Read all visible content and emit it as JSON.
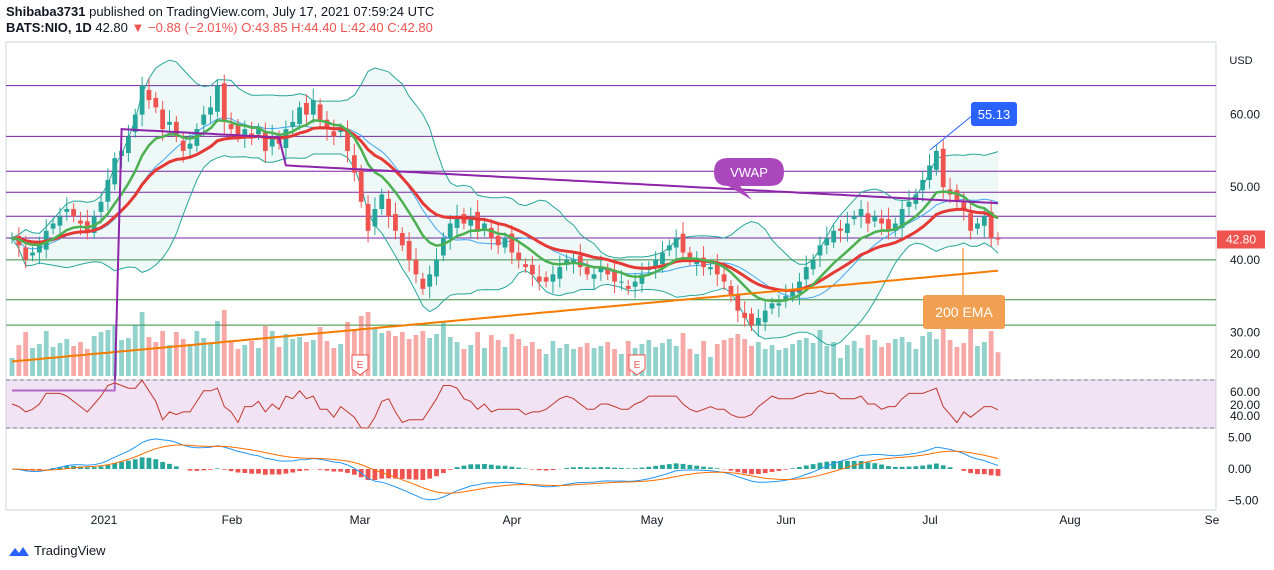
{
  "header": {
    "author": "Shibaba3731",
    "published": "published on TradingView.com, July 17, 2021 07:59:24 UTC",
    "symbol": "BATS:NIO, 1D",
    "last": "42.80",
    "change": "−0.88 (−2.01%)",
    "ohlc": "O:43.85 H:44.40 L:42.40 C:42.80"
  },
  "footer": {
    "brand": "TradingView"
  },
  "colors": {
    "up": "#26a69a",
    "down": "#ef5350",
    "vwap": "#8e24aa",
    "ema200": "#f57c00",
    "ema_fast": "#4caf50",
    "ema_slow": "#e53935",
    "bands": "#26a69a",
    "rsi": "#c0392b",
    "hline": "#7b1fa2",
    "green_hline": "#388e3c",
    "macd": "#2196f3",
    "signal": "#ff6d00"
  },
  "chart_data": {
    "type": "candlestick",
    "currency": "USD",
    "price_axis": {
      "ylim": [
        24,
        70
      ],
      "ticks": [
        20,
        30,
        40,
        50,
        60
      ]
    },
    "x_labels": [
      "2021",
      "Feb",
      "Mar",
      "Apr",
      "May",
      "Jun",
      "Jul",
      "Aug",
      "Se"
    ],
    "last_price_label": "42.80",
    "horizontal_levels": {
      "purple": [
        64.0,
        57.0,
        52.2,
        49.3,
        46.0,
        43.0
      ],
      "green": [
        40.0,
        34.5,
        31.0
      ]
    },
    "annotations": [
      {
        "text": "55.13",
        "value": 55.13
      },
      {
        "text": "VWAP"
      },
      {
        "text": "200 EMA"
      }
    ],
    "earnings_markers": [
      "E",
      "E"
    ],
    "closes": [
      43,
      42,
      40,
      41,
      42,
      44,
      45,
      46,
      47,
      46,
      45,
      44,
      46,
      48,
      51,
      54,
      55,
      57,
      60,
      64,
      62,
      61,
      58,
      59,
      57,
      55,
      56,
      58,
      60,
      61,
      64,
      59,
      58,
      57,
      58,
      57,
      58,
      55,
      57,
      56,
      58,
      59,
      61,
      60,
      62,
      59,
      58,
      57,
      58,
      55,
      52,
      48,
      44,
      47,
      49,
      46,
      44,
      42,
      40,
      38,
      36,
      38,
      40,
      43,
      45,
      46,
      45,
      46,
      44,
      45,
      43,
      42,
      43,
      41,
      40,
      39,
      38,
      37,
      37,
      38,
      39,
      40,
      40,
      39,
      38,
      38,
      39,
      38,
      37,
      37,
      36,
      37,
      38,
      39,
      40,
      41,
      42,
      43,
      41,
      40,
      40,
      39,
      39,
      38,
      37,
      35,
      33,
      32,
      31,
      32,
      33,
      34,
      34,
      35,
      36,
      37,
      39,
      40,
      42,
      43,
      44,
      44,
      45,
      46,
      47,
      45,
      46,
      45,
      44,
      45,
      47,
      48,
      49,
      51,
      53,
      55,
      50,
      49,
      48,
      47,
      44,
      45,
      46,
      43,
      42.8
    ],
    "rsi_axis": {
      "ylim": [
        30,
        70
      ],
      "ticks": [
        40,
        60
      ],
      "levels": [
        70,
        30
      ]
    },
    "macd_axis": {
      "ylim": [
        -6.5,
        6.5
      ],
      "ticks": [
        5.0,
        0.0,
        -5.0
      ],
      "tick_labels": [
        "5.00",
        "0.00",
        "−5.00"
      ]
    },
    "volume_axis_label": "20.00"
  }
}
